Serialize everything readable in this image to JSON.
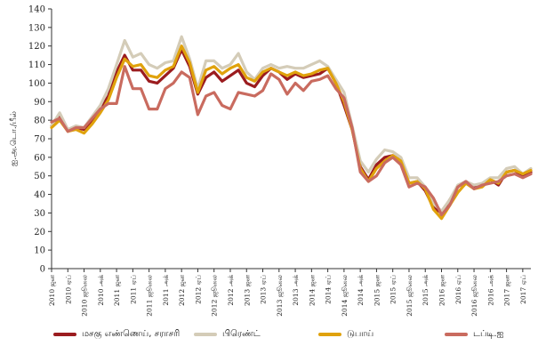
{
  "chart_data": {
    "type": "line",
    "ylabel": "ஐ.அ.டொ./பீல்",
    "ylim": [
      0,
      140
    ],
    "yticks": [
      0,
      10,
      20,
      30,
      40,
      50,
      60,
      70,
      80,
      90,
      100,
      110,
      120,
      130,
      140
    ],
    "grid": false,
    "legend_position": "bottom",
    "x": [
      "2010 ஜன",
      "2010 ஏப்",
      "2010 ஜூலை",
      "2010 அக்",
      "2011 ஜன",
      "2011 ஏப்",
      "2011 ஜூலை",
      "2011 அக்",
      "2012 ஜன",
      "2012 ஏப்",
      "2012 ஜூலை",
      "2012 அக்",
      "2013 ஜன",
      "2013 ஏப்",
      "2013 ஜூலை",
      "2013 அக்",
      "2014 ஜன",
      "2014 ஏப்",
      "2014 ஜூலை",
      "2014 அக்",
      "2015 ஜன",
      "2015 ஏப்",
      "2015 ஜூலை",
      "2015 அக்",
      "2016 ஜன",
      "2016 ஏப்",
      "2016 ஜூலை",
      "2016 அக்",
      "2017 ஜன",
      "2017 ஏப்"
    ],
    "x_values": [
      0,
      0.5,
      1,
      1.5,
      2,
      2.5,
      3,
      3.5,
      4,
      4.5,
      5,
      5.5,
      6,
      6.5,
      7,
      7.5,
      8,
      8.5,
      9,
      9.5,
      10,
      10.5,
      11,
      11.5,
      12,
      12.5,
      13,
      13.5,
      14,
      14.5,
      15,
      15.5,
      16,
      16.5,
      17,
      17.5,
      18,
      18.5,
      19,
      19.5,
      20,
      20.5,
      21,
      21.5,
      22,
      22.5,
      23,
      23.5,
      24,
      24.5,
      25,
      25.5,
      26,
      26.5,
      27,
      27.5,
      28,
      28.5,
      29,
      29.5
    ],
    "series": [
      {
        "name": "மசகு எண்ணெய், சராசரி",
        "color": "#9b1c1f",
        "values": [
          77,
          82,
          74,
          76,
          75,
          80,
          86,
          93,
          106,
          115,
          107,
          107,
          101,
          100,
          104,
          108,
          118,
          109,
          94,
          103,
          106,
          101,
          104,
          107,
          100,
          98,
          104,
          108,
          106,
          102,
          105,
          103,
          104,
          105,
          108,
          100,
          88,
          75,
          55,
          48,
          56,
          60,
          61,
          58,
          46,
          47,
          42,
          33,
          30,
          37,
          44,
          47,
          44,
          45,
          48,
          45,
          52,
          53,
          50,
          52
        ]
      },
      {
        "name": "பிரெண்ட்",
        "color": "#d4ccb8",
        "values": [
          77,
          84,
          75,
          77,
          76,
          82,
          88,
          97,
          110,
          123,
          114,
          116,
          110,
          108,
          111,
          112,
          125,
          113,
          97,
          112,
          112,
          108,
          110,
          116,
          106,
          102,
          108,
          110,
          108,
          109,
          108,
          108,
          110,
          112,
          109,
          102,
          95,
          77,
          58,
          52,
          59,
          64,
          63,
          60,
          49,
          49,
          44,
          35,
          31,
          37,
          45,
          47,
          45,
          46,
          49,
          49,
          54,
          55,
          51,
          54
        ]
      },
      {
        "name": "டுபாய்",
        "color": "#e0a20c",
        "values": [
          76,
          80,
          74,
          75,
          73,
          78,
          84,
          91,
          103,
          113,
          109,
          110,
          104,
          103,
          107,
          109,
          120,
          111,
          95,
          107,
          109,
          105,
          108,
          110,
          103,
          101,
          106,
          108,
          106,
          104,
          106,
          104,
          105,
          107,
          108,
          100,
          90,
          75,
          54,
          47,
          54,
          58,
          61,
          58,
          46,
          47,
          43,
          32,
          27,
          34,
          41,
          46,
          43,
          44,
          48,
          46,
          52,
          53,
          51,
          53
        ]
      },
      {
        "name": "டப்டி.ஐ",
        "color": "#c96b5f",
        "values": [
          79,
          81,
          74,
          76,
          76,
          81,
          86,
          89,
          89,
          109,
          97,
          97,
          86,
          86,
          97,
          100,
          106,
          103,
          83,
          93,
          95,
          88,
          86,
          95,
          94,
          93,
          96,
          105,
          102,
          94,
          100,
          96,
          101,
          102,
          104,
          97,
          92,
          76,
          52,
          47,
          50,
          57,
          60,
          56,
          44,
          46,
          44,
          38,
          29,
          34,
          44,
          47,
          43,
          45,
          46,
          47,
          50,
          51,
          49,
          51
        ]
      }
    ]
  }
}
